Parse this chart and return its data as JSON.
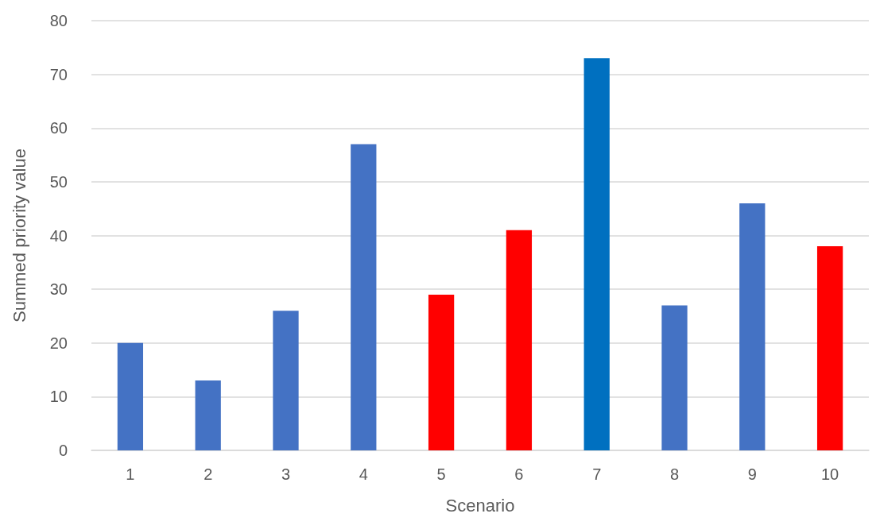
{
  "chart_data": {
    "type": "bar",
    "categories": [
      "1",
      "2",
      "3",
      "4",
      "5",
      "6",
      "7",
      "8",
      "9",
      "10"
    ],
    "values": [
      20,
      13,
      26,
      57,
      29,
      41,
      73,
      27,
      46,
      38
    ],
    "colors": [
      "#4472c4",
      "#4472c4",
      "#4472c4",
      "#4472c4",
      "#ff0000",
      "#ff0000",
      "#0070c0",
      "#4472c4",
      "#4472c4",
      "#ff0000"
    ],
    "xlabel": "Scenario",
    "ylabel": "Summed priority value",
    "ylim": [
      0,
      80
    ],
    "yticks": [
      0,
      10,
      20,
      30,
      40,
      50,
      60,
      70,
      80
    ],
    "grid": "y"
  }
}
